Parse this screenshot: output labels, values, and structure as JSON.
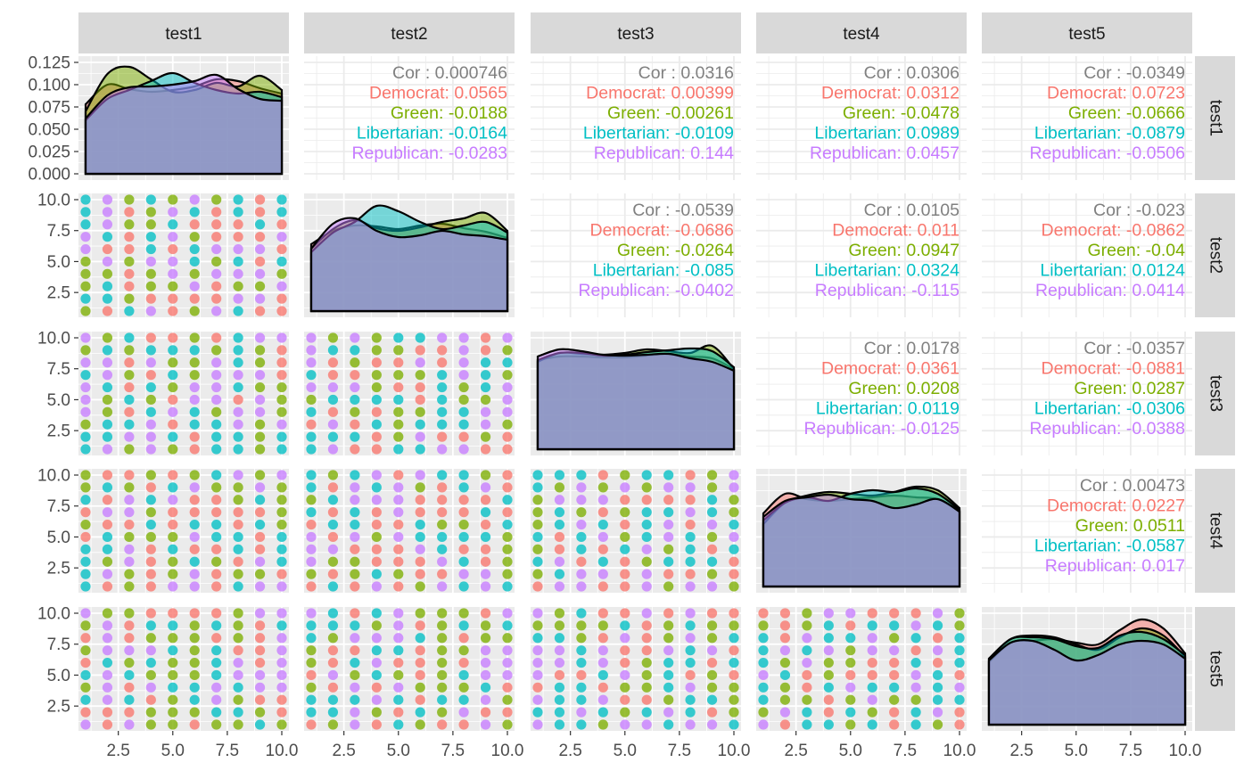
{
  "chart_data": {
    "type": "scatter",
    "title": "",
    "variables": [
      "test1",
      "test2",
      "test3",
      "test4",
      "test5"
    ],
    "x_axis": {
      "range": [
        1,
        10
      ],
      "ticks": [
        2.5,
        5.0,
        7.5,
        10.0
      ],
      "tick_labels": [
        "2.5",
        "5.0",
        "7.5",
        "10.0"
      ]
    },
    "y_axis_scatter": {
      "range": [
        1,
        10
      ],
      "ticks": [
        2.5,
        5.0,
        7.5,
        10.0
      ],
      "tick_labels": [
        "2.5",
        "5.0",
        "7.5",
        "10.0"
      ]
    },
    "y_axis_density": {
      "range": [
        0,
        0.125
      ],
      "ticks": [
        0,
        0.025,
        0.05,
        0.075,
        0.1,
        0.125
      ],
      "tick_labels": [
        "0.000",
        "0.025",
        "0.050",
        "0.075",
        "0.100",
        "0.125"
      ]
    },
    "groups": [
      {
        "name": "Democrat",
        "color": "#F8766D"
      },
      {
        "name": "Green",
        "color": "#7CAE00"
      },
      {
        "name": "Libertarian",
        "color": "#00BFC4"
      },
      {
        "name": "Republican",
        "color": "#C77CFF"
      }
    ],
    "correlations": [
      {
        "row": 0,
        "col": 1,
        "lines": [
          "Cor : 0.000746",
          "Democrat: 0.0565",
          "Green: -0.0188",
          "Libertarian: -0.0164",
          "Republican: -0.0283"
        ]
      },
      {
        "row": 0,
        "col": 2,
        "lines": [
          "Cor : 0.0316",
          "Democrat: 0.00399",
          "Green: -0.00261",
          "Libertarian: -0.0109",
          "Republican: 0.144"
        ]
      },
      {
        "row": 0,
        "col": 3,
        "lines": [
          "Cor : 0.0306",
          "Democrat: 0.0312",
          "Green: -0.0478",
          "Libertarian: 0.0989",
          "Republican: 0.0457"
        ]
      },
      {
        "row": 0,
        "col": 4,
        "lines": [
          "Cor : -0.0349",
          "Democrat: 0.0723",
          "Green: -0.0666",
          "Libertarian: -0.0879",
          "Republican: -0.0506"
        ]
      },
      {
        "row": 1,
        "col": 2,
        "lines": [
          "Cor : -0.0539",
          "Democrat: -0.0686",
          "Green: -0.0264",
          "Libertarian: -0.085",
          "Republican: -0.0402"
        ]
      },
      {
        "row": 1,
        "col": 3,
        "lines": [
          "Cor : 0.0105",
          "Democrat: 0.011",
          "Green: 0.0947",
          "Libertarian: 0.0324",
          "Republican: -0.115"
        ]
      },
      {
        "row": 1,
        "col": 4,
        "lines": [
          "Cor : -0.023",
          "Democrat: -0.0862",
          "Green: -0.04",
          "Libertarian: 0.0124",
          "Republican: 0.0414"
        ]
      },
      {
        "row": 2,
        "col": 3,
        "lines": [
          "Cor : 0.0178",
          "Democrat: 0.0361",
          "Green: 0.0208",
          "Libertarian: 0.0119",
          "Republican: -0.0125"
        ]
      },
      {
        "row": 2,
        "col": 4,
        "lines": [
          "Cor : -0.0357",
          "Democrat: -0.0881",
          "Green: 0.0287",
          "Libertarian: -0.0306",
          "Republican: -0.0388"
        ]
      },
      {
        "row": 3,
        "col": 4,
        "lines": [
          "Cor : 0.00473",
          "Democrat: 0.0227",
          "Green: 0.0511",
          "Libertarian: -0.0587",
          "Republican: 0.017"
        ]
      }
    ],
    "densities": [
      {
        "variable": "test1",
        "series": {
          "Democrat": [
            0.078,
            0.1,
            0.095,
            0.092,
            0.094,
            0.098,
            0.106,
            0.104,
            0.096,
            0.09
          ],
          "Green": [
            0.07,
            0.112,
            0.12,
            0.106,
            0.092,
            0.094,
            0.102,
            0.098,
            0.11,
            0.094
          ],
          "Libertarian": [
            0.06,
            0.084,
            0.094,
            0.104,
            0.113,
            0.102,
            0.094,
            0.09,
            0.092,
            0.086
          ],
          "Republican": [
            0.062,
            0.088,
            0.097,
            0.098,
            0.1,
            0.104,
            0.111,
            0.095,
            0.084,
            0.082
          ]
        }
      },
      {
        "variable": "test2",
        "series": {
          "Democrat": [
            0.075,
            0.09,
            0.096,
            0.095,
            0.092,
            0.096,
            0.098,
            0.093,
            0.089,
            0.082
          ],
          "Green": [
            0.07,
            0.092,
            0.102,
            0.093,
            0.09,
            0.094,
            0.1,
            0.104,
            0.11,
            0.09
          ],
          "Libertarian": [
            0.066,
            0.088,
            0.1,
            0.118,
            0.112,
            0.1,
            0.092,
            0.096,
            0.1,
            0.088
          ],
          "Republican": [
            0.07,
            0.098,
            0.104,
            0.09,
            0.083,
            0.085,
            0.09,
            0.086,
            0.084,
            0.08
          ]
        }
      },
      {
        "variable": "test3",
        "series": {
          "Democrat": [
            0.1,
            0.104,
            0.104,
            0.103,
            0.103,
            0.105,
            0.107,
            0.104,
            0.102,
            0.09
          ],
          "Green": [
            0.098,
            0.108,
            0.107,
            0.106,
            0.108,
            0.112,
            0.11,
            0.108,
            0.116,
            0.09
          ],
          "Libertarian": [
            0.1,
            0.108,
            0.108,
            0.105,
            0.106,
            0.109,
            0.111,
            0.113,
            0.11,
            0.092
          ],
          "Republican": [
            0.104,
            0.112,
            0.11,
            0.106,
            0.105,
            0.106,
            0.107,
            0.102,
            0.098,
            0.088
          ]
        }
      },
      {
        "variable": "test4",
        "series": {
          "Democrat": [
            0.082,
            0.104,
            0.098,
            0.096,
            0.098,
            0.1,
            0.102,
            0.1,
            0.098,
            0.084
          ],
          "Green": [
            0.07,
            0.094,
            0.102,
            0.106,
            0.104,
            0.102,
            0.106,
            0.112,
            0.108,
            0.088
          ],
          "Libertarian": [
            0.074,
            0.094,
            0.1,
            0.096,
            0.104,
            0.108,
            0.106,
            0.11,
            0.104,
            0.086
          ],
          "Republican": [
            0.078,
            0.096,
            0.1,
            0.103,
            0.098,
            0.096,
            0.088,
            0.092,
            0.098,
            0.084
          ]
        }
      },
      {
        "variable": "test5",
        "series": {
          "Democrat": [
            0.07,
            0.092,
            0.094,
            0.096,
            0.092,
            0.09,
            0.106,
            0.118,
            0.108,
            0.08
          ],
          "Green": [
            0.074,
            0.096,
            0.1,
            0.098,
            0.09,
            0.084,
            0.098,
            0.108,
            0.1,
            0.076
          ],
          "Libertarian": [
            0.074,
            0.096,
            0.098,
            0.096,
            0.088,
            0.086,
            0.1,
            0.104,
            0.096,
            0.078
          ],
          "Republican": [
            0.072,
            0.092,
            0.094,
            0.084,
            0.072,
            0.078,
            0.09,
            0.094,
            0.09,
            0.074
          ]
        }
      }
    ],
    "scatter_grid_values": [
      1,
      2,
      3,
      4,
      5,
      6,
      7,
      8,
      9,
      10
    ]
  }
}
